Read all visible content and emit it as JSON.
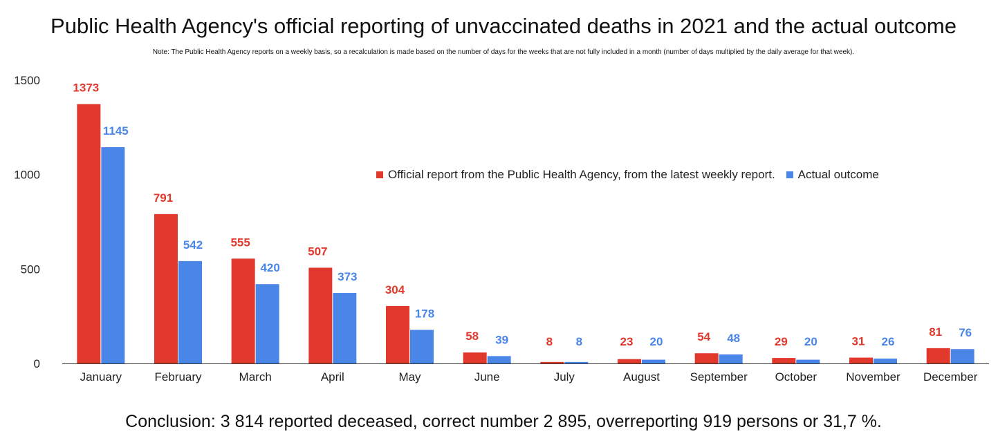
{
  "chart_data": {
    "type": "bar",
    "title": "Public Health Agency's official reporting of unvaccinated deaths in 2021 and the actual outcome",
    "note": "Note: The Public Health Agency reports on a weekly basis, so a recalculation is made based on the number of days for the weeks that are not fully included in a month (number of days multiplied by the daily average for that week).",
    "categories": [
      "January",
      "February",
      "March",
      "April",
      "May",
      "June",
      "July",
      "August",
      "September",
      "October",
      "November",
      "December"
    ],
    "series": [
      {
        "name": "Official report from the Public Health Agency, from the latest weekly report.",
        "color": "#e0392b",
        "values": [
          1373,
          791,
          555,
          507,
          304,
          58,
          8,
          23,
          54,
          29,
          31,
          81
        ]
      },
      {
        "name": "Actual outcome",
        "color": "#4a86e8",
        "values": [
          1145,
          542,
          420,
          373,
          178,
          39,
          8,
          20,
          48,
          20,
          26,
          76
        ]
      }
    ],
    "y_ticks": [
      0,
      500,
      1000,
      1500
    ],
    "ylim": [
      0,
      1500
    ],
    "grid": false,
    "legend_position": "right-center",
    "data_labels": true,
    "xlabel": "",
    "ylabel": ""
  },
  "conclusion": "Conclusion: 3 814 reported deceased, correct number 2 895, overreporting 919 persons or 31,7 %."
}
